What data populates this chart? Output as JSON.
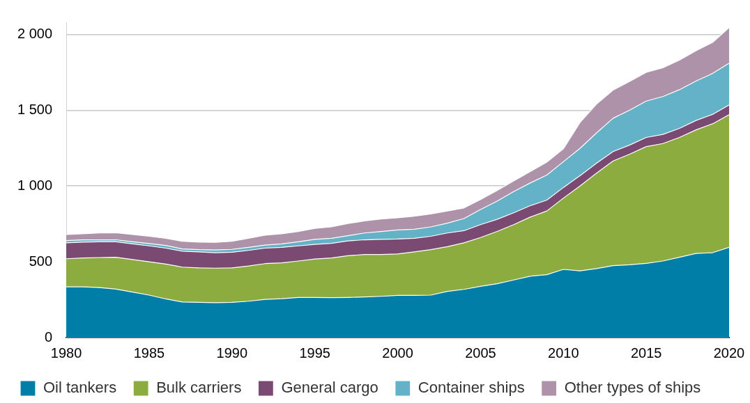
{
  "chart_data": {
    "type": "area",
    "stacked": true,
    "x": [
      1980,
      1981,
      1982,
      1983,
      1984,
      1985,
      1986,
      1987,
      1988,
      1989,
      1990,
      1991,
      1992,
      1993,
      1994,
      1995,
      1996,
      1997,
      1998,
      1999,
      2000,
      2001,
      2002,
      2003,
      2004,
      2005,
      2006,
      2007,
      2008,
      2009,
      2010,
      2011,
      2012,
      2013,
      2014,
      2015,
      2016,
      2017,
      2018,
      2019,
      2020
    ],
    "series": [
      {
        "name": "Oil tankers",
        "color": "#007ea7",
        "values": [
          335,
          335,
          330,
          320,
          300,
          280,
          255,
          235,
          232,
          230,
          232,
          240,
          252,
          257,
          265,
          265,
          263,
          265,
          268,
          272,
          278,
          278,
          280,
          305,
          318,
          338,
          355,
          380,
          405,
          415,
          450,
          440,
          455,
          475,
          480,
          490,
          505,
          530,
          555,
          560,
          595
        ]
      },
      {
        "name": "Bulk carriers",
        "color": "#8cac40",
        "values": [
          185,
          190,
          198,
          210,
          215,
          220,
          230,
          230,
          228,
          228,
          228,
          232,
          236,
          236,
          240,
          253,
          262,
          275,
          280,
          276,
          274,
          287,
          300,
          295,
          307,
          322,
          345,
          365,
          390,
          420,
          470,
          560,
          630,
          690,
          730,
          770,
          775,
          790,
          815,
          850,
          875
        ]
      },
      {
        "name": "General cargo",
        "color": "#7a4a72",
        "values": [
          105,
          105,
          104,
          102,
          103,
          105,
          105,
          105,
          105,
          102,
          103,
          103,
          102,
          102,
          100,
          97,
          97,
          98,
          97,
          100,
          98,
          90,
          88,
          90,
          80,
          85,
          80,
          78,
          75,
          72,
          70,
          68,
          65,
          62,
          60,
          60,
          60,
          60,
          62,
          62,
          65
        ]
      },
      {
        "name": "Container ships",
        "color": "#64b2c8",
        "values": [
          15,
          15,
          13,
          13,
          14,
          15,
          18,
          15,
          15,
          18,
          19,
          20,
          20,
          23,
          27,
          33,
          33,
          34,
          45,
          52,
          60,
          60,
          62,
          65,
          80,
          100,
          120,
          140,
          150,
          165,
          170,
          180,
          200,
          220,
          230,
          240,
          250,
          255,
          260,
          270,
          275
        ]
      },
      {
        "name": "Other types of ships",
        "color": "#ae92aa",
        "values": [
          40,
          40,
          45,
          47,
          48,
          48,
          47,
          50,
          50,
          50,
          53,
          60,
          65,
          67,
          68,
          72,
          75,
          80,
          80,
          82,
          80,
          85,
          85,
          80,
          70,
          65,
          70,
          70,
          75,
          85,
          85,
          170,
          190,
          185,
          190,
          190,
          190,
          195,
          200,
          205,
          235
        ]
      }
    ],
    "xlim": [
      1980,
      2020
    ],
    "xticks": [
      1980,
      1985,
      1990,
      1995,
      2000,
      2005,
      2010,
      2015,
      2020
    ],
    "ylim": [
      0,
      2080
    ],
    "yticks": [
      0,
      500,
      {
        "value": 1000,
        "label": "1 000"
      },
      {
        "value": 1500,
        "label": "1 500"
      },
      {
        "value": 2000,
        "label": "2 000"
      }
    ],
    "grid": "y",
    "legend": "bottom"
  }
}
